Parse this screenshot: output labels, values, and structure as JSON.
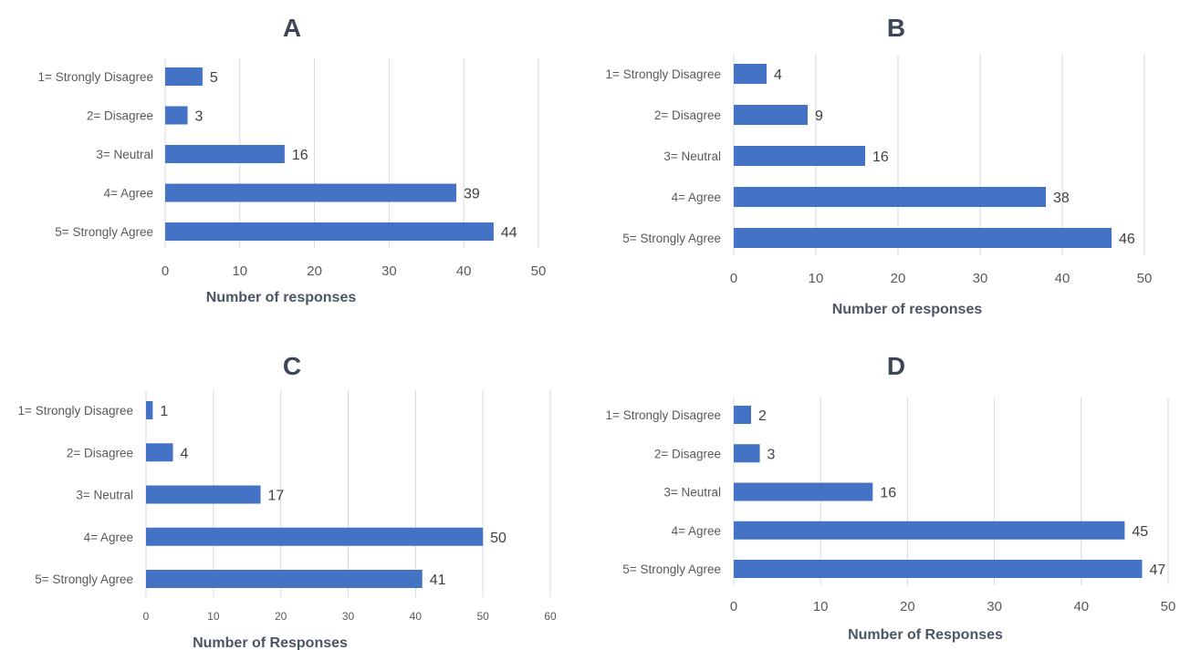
{
  "colors": {
    "bar": "#4472c4",
    "bar_shade": "#3b5fa6",
    "title": "#3b4656"
  },
  "chart_data": [
    {
      "type": "bar",
      "orientation": "horizontal",
      "title": "A",
      "categories": [
        "1= Strongly Disagree",
        "2= Disagree",
        "3= Neutral",
        "4= Agree",
        "5= Strongly Agree"
      ],
      "values": [
        5,
        3,
        16,
        39,
        44
      ],
      "xlabel": "Number of responses",
      "ylabel": "",
      "xlim": [
        0,
        50
      ],
      "xticks": [
        0,
        10,
        20,
        30,
        40,
        50
      ],
      "grid": true
    },
    {
      "type": "bar",
      "orientation": "horizontal",
      "title": "B",
      "categories": [
        "1= Strongly Disagree",
        "2= Disagree",
        "3= Neutral",
        "4= Agree",
        "5= Strongly Agree"
      ],
      "values": [
        4,
        9,
        16,
        38,
        46
      ],
      "xlabel": "Number of responses",
      "ylabel": "",
      "xlim": [
        0,
        50
      ],
      "xticks": [
        0,
        10,
        20,
        30,
        40,
        50
      ],
      "grid": true
    },
    {
      "type": "bar",
      "orientation": "horizontal",
      "title": "C",
      "categories": [
        "1= Strongly Disagree",
        "2= Disagree",
        "3= Neutral",
        "4= Agree",
        "5= Strongly Agree"
      ],
      "values": [
        1,
        4,
        17,
        50,
        41
      ],
      "xlabel": "Number of Responses",
      "ylabel": "",
      "xlim": [
        0,
        60
      ],
      "xticks": [
        0,
        10,
        20,
        30,
        40,
        50,
        60
      ],
      "grid": true
    },
    {
      "type": "bar",
      "orientation": "horizontal",
      "title": "D",
      "categories": [
        "1= Strongly Disagree",
        "2= Disagree",
        "3= Neutral",
        "4= Agree",
        "5= Strongly Agree"
      ],
      "values": [
        2,
        3,
        16,
        45,
        47
      ],
      "xlabel": "Number of Responses",
      "ylabel": "",
      "xlim": [
        0,
        50
      ],
      "xticks": [
        0,
        10,
        20,
        30,
        40,
        50
      ],
      "grid": true
    }
  ]
}
